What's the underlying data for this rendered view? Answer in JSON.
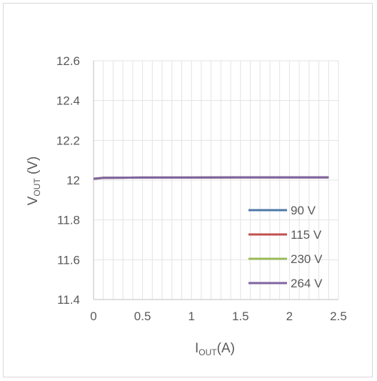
{
  "chart_data": {
    "type": "line",
    "xlabel": {
      "main": "I",
      "sub": "OUT",
      "suffix": "(A)"
    },
    "ylabel": {
      "main": "V",
      "sub": "OUT",
      "suffix": " (V)"
    },
    "xlim": [
      0,
      2.5
    ],
    "ylim": [
      11.4,
      12.6
    ],
    "x_ticks": [
      "0",
      "0.5",
      "1",
      "1.5",
      "2",
      "2.5"
    ],
    "y_ticks": [
      "11.4",
      "11.6",
      "11.8",
      "12",
      "12.2",
      "12.4",
      "12.6"
    ],
    "grid": true,
    "legend_position": "bottom-right",
    "series": [
      {
        "name": "90 V",
        "color": "#4e79a7",
        "x": [
          0,
          0.1,
          0.5,
          1,
          1.5,
          2,
          2.4
        ],
        "y": [
          12.007,
          12.012,
          12.013,
          12.013,
          12.014,
          12.014,
          12.014
        ]
      },
      {
        "name": "115 V",
        "color": "#c0504d",
        "x": [
          0,
          0.1,
          0.5,
          1,
          1.5,
          2,
          2.4
        ],
        "y": [
          12.007,
          12.012,
          12.013,
          12.013,
          12.014,
          12.014,
          12.014
        ]
      },
      {
        "name": "230 V",
        "color": "#9bbb59",
        "x": [
          0,
          0.1,
          0.5,
          1,
          1.5,
          2,
          2.4
        ],
        "y": [
          12.007,
          12.012,
          12.013,
          12.013,
          12.014,
          12.014,
          12.014
        ]
      },
      {
        "name": "264 V",
        "color": "#8064a2",
        "x": [
          0,
          0.1,
          0.5,
          1,
          1.5,
          2,
          2.4
        ],
        "y": [
          12.007,
          12.012,
          12.013,
          12.013,
          12.014,
          12.014,
          12.014
        ]
      }
    ]
  }
}
